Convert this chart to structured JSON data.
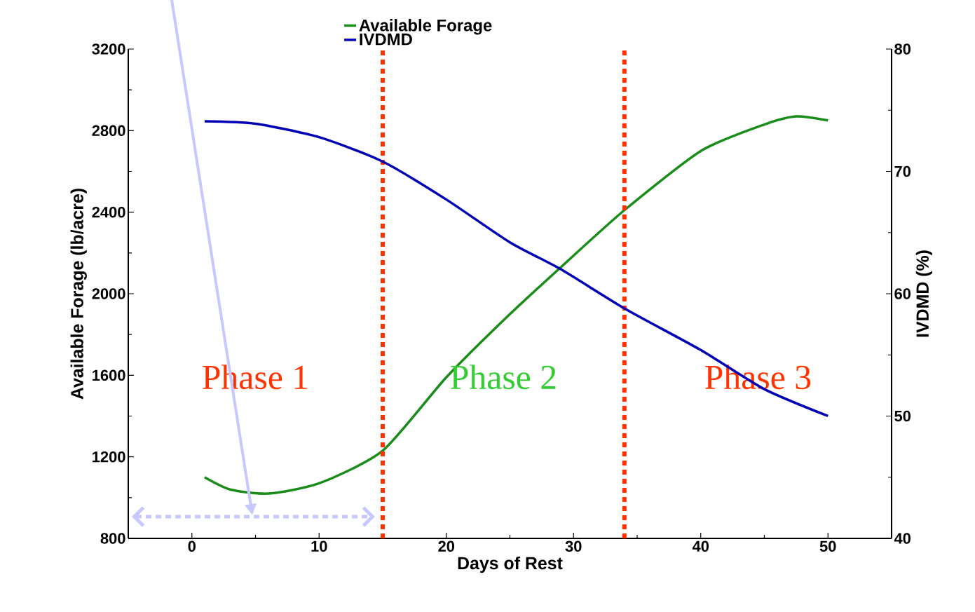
{
  "chart_data": {
    "type": "line",
    "xlabel": "Days of Rest",
    "ylabel": "Available Forage (lb/acre)",
    "y2label": "IVDMD (%)",
    "xlim": [
      -5,
      55
    ],
    "xticks": [
      0,
      10,
      20,
      30,
      40,
      50
    ],
    "ylim": [
      800,
      3200
    ],
    "yticks": [
      800,
      1200,
      1600,
      2000,
      2400,
      2800,
      3200
    ],
    "y2lim": [
      40,
      80
    ],
    "y2ticks": [
      40,
      50,
      60,
      70,
      80
    ],
    "legend": "top",
    "marker": "none",
    "line_style": "solid",
    "series": [
      {
        "name": "Available Forage",
        "color": "#1a8c1a",
        "x": [
          1,
          3,
          6,
          10,
          15,
          20,
          25,
          29,
          34,
          40,
          45,
          47.5,
          50
        ],
        "values": [
          1100,
          1040,
          1020,
          1070,
          1230,
          1590,
          1900,
          2130,
          2410,
          2700,
          2830,
          2870,
          2850
        ]
      },
      {
        "name": "IVDMD",
        "color": "#0000b4",
        "axis": "y2",
        "x": [
          1,
          5,
          10,
          15,
          20,
          25,
          29,
          34,
          40,
          45,
          50
        ],
        "values": [
          74.1,
          73.9,
          72.8,
          70.8,
          67.7,
          64.2,
          62,
          58.8,
          55.4,
          52.2,
          50
        ]
      }
    ],
    "ref_lines": [
      {
        "axis": "x",
        "value": 15,
        "color": "#ff3300",
        "line_style": "dotted"
      },
      {
        "axis": "x",
        "value": 34,
        "color": "#ff3300",
        "line_style": "dotted"
      }
    ],
    "annotations": [
      "Phase 1",
      "Phase 2",
      "Phase 3"
    ]
  }
}
